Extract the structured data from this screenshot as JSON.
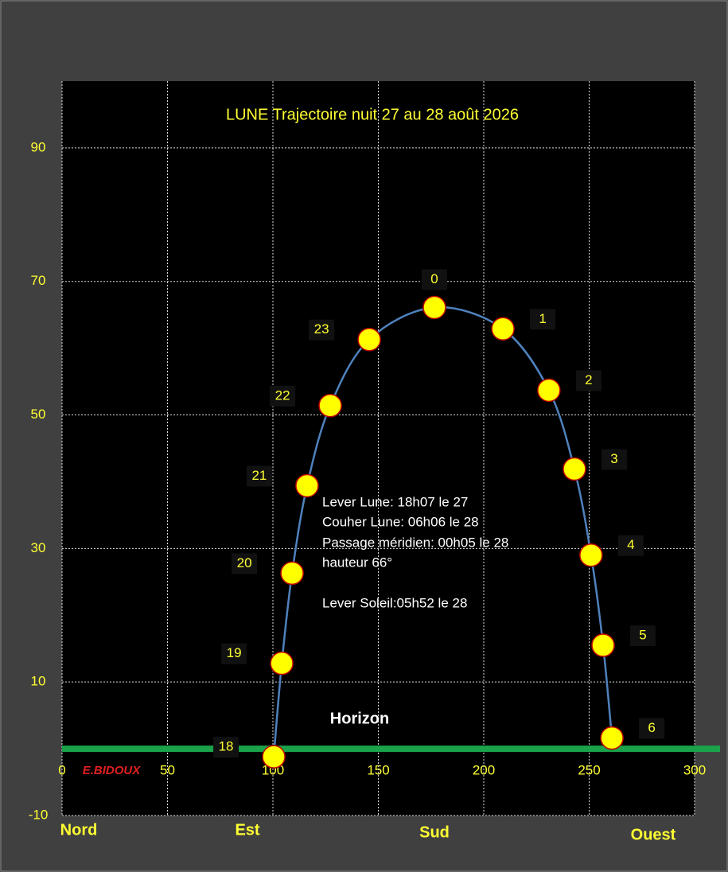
{
  "chart_data": {
    "type": "line",
    "title": "LUNE Trajectoire nuit 27 au 28 août 2026",
    "x": [
      100.4,
      104.2,
      109.1,
      116.2,
      127.2,
      145.7,
      176.6,
      209.1,
      230.9,
      243.0,
      250.9,
      256.6,
      260.8
    ],
    "series": [
      {
        "color": "#4f81bd",
        "marker_color": "#ffff00",
        "marker_edge": "#c00000",
        "values": [
          -1.2,
          12.8,
          26.3,
          39.4,
          51.4,
          61.3,
          66.1,
          62.9,
          53.7,
          41.9,
          29.0,
          15.5,
          1.6
        ],
        "labels": [
          "18",
          "19",
          "20",
          "21",
          "22",
          "23",
          "0",
          "1",
          "2",
          "3",
          "4",
          "5",
          "6"
        ]
      }
    ],
    "xlim": [
      0,
      300
    ],
    "ylim": [
      -10,
      100
    ],
    "xticks": [
      0,
      50,
      100,
      150,
      200,
      250,
      300
    ],
    "yticks": [
      -10,
      10,
      30,
      50,
      70,
      90
    ],
    "grid": true,
    "horizon": {
      "label": "Horizon",
      "value": 0,
      "color": "#1aa34a"
    },
    "directions": [
      "Nord",
      "Est",
      "Sud",
      "Ouest"
    ],
    "author": "E.BIDOUX",
    "notes": [
      "Lever Lune: 18h07 le 27",
      "Couher Lune: 06h06 le 28",
      "Passage méridien: 00h05 le 28",
      "hauteur 66°"
    ],
    "note_sun": "Lever Soleil:05h52 le 28"
  }
}
